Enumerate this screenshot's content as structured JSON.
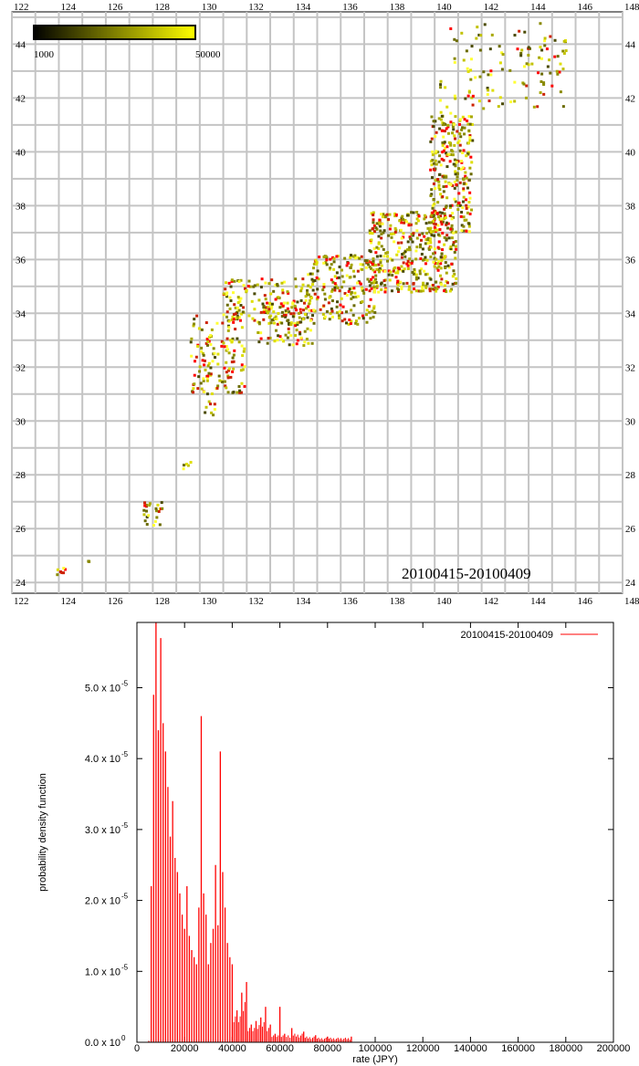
{
  "chart_data": [
    {
      "type": "scatter",
      "title": "",
      "annotation": "20100415-20100409",
      "xlabel": "",
      "ylabel": "",
      "xlim": [
        122,
        148
      ],
      "ylim": [
        23.6,
        45.2
      ],
      "x_ticks": [
        122,
        124,
        126,
        128,
        130,
        132,
        134,
        136,
        138,
        140,
        142,
        144,
        146,
        148
      ],
      "y_ticks": [
        24,
        26,
        28,
        30,
        32,
        34,
        36,
        38,
        40,
        42,
        44
      ],
      "grid": true,
      "colorbar": {
        "min": 1000,
        "max": 50000,
        "min_label": "1000",
        "max_label": "50000",
        "low_color": "#000000",
        "high_color": "#ffff00",
        "placement": "top-left"
      },
      "clusters": [
        {
          "x": [
            140.2,
            145.6
          ],
          "y": [
            41.6,
            44.8
          ],
          "n": 120
        },
        {
          "x": [
            139.8,
            141.6
          ],
          "y": [
            37.0,
            41.5
          ],
          "n": 260
        },
        {
          "x": [
            137.2,
            140.9
          ],
          "y": [
            34.8,
            37.8
          ],
          "n": 420
        },
        {
          "x": [
            134.5,
            137.5
          ],
          "y": [
            33.6,
            36.2
          ],
          "n": 200
        },
        {
          "x": [
            131.0,
            134.8
          ],
          "y": [
            33.6,
            35.3
          ],
          "n": 160
        },
        {
          "x": [
            132.4,
            134.9
          ],
          "y": [
            32.8,
            34.4
          ],
          "n": 80
        },
        {
          "x": [
            129.6,
            131.9
          ],
          "y": [
            31.0,
            34.0
          ],
          "n": 140
        },
        {
          "x": [
            130.2,
            130.7
          ],
          "y": [
            30.2,
            30.8
          ],
          "n": 8
        },
        {
          "x": [
            129.2,
            129.6
          ],
          "y": [
            28.2,
            28.5
          ],
          "n": 5
        },
        {
          "x": [
            127.6,
            128.4
          ],
          "y": [
            26.1,
            27.0
          ],
          "n": 25
        },
        {
          "x": [
            123.9,
            124.3
          ],
          "y": [
            24.3,
            24.6
          ],
          "n": 8
        },
        {
          "x": [
            125.2,
            125.4
          ],
          "y": [
            24.7,
            24.9
          ],
          "n": 3
        }
      ],
      "colors": [
        "#ff0000",
        "#cc2200",
        "#4a4a00",
        "#6b6b00",
        "#8a8a00",
        "#a8a800",
        "#c2c200",
        "#dede00",
        "#ffff33"
      ]
    },
    {
      "type": "bar",
      "title": "",
      "xlabel": "rate (JPY)",
      "ylabel": "probability density function",
      "xlim": [
        0,
        200000
      ],
      "ylim": [
        0,
        5.92e-05
      ],
      "x_ticks": [
        {
          "v": 0,
          "label": "0"
        },
        {
          "v": 20000,
          "label": "20000"
        },
        {
          "v": 40000,
          "label": "40000"
        },
        {
          "v": 60000,
          "label": "60000"
        },
        {
          "v": 80000,
          "label": "80000"
        },
        {
          "v": 100000,
          "label": "100000"
        },
        {
          "v": 120000,
          "label": "120000"
        },
        {
          "v": 140000,
          "label": "140000"
        },
        {
          "v": 160000,
          "label": "160000"
        },
        {
          "v": 180000,
          "label": "180000"
        },
        {
          "v": 200000,
          "label": "200000"
        }
      ],
      "y_ticks": [
        {
          "v": 0,
          "label": "0.0 x 10",
          "exp": "0"
        },
        {
          "v": 1e-05,
          "label": "1.0 x 10",
          "exp": "-5"
        },
        {
          "v": 2e-05,
          "label": "2.0 x 10",
          "exp": "-5"
        },
        {
          "v": 3e-05,
          "label": "3.0 x 10",
          "exp": "-5"
        },
        {
          "v": 4e-05,
          "label": "4.0 x 10",
          "exp": "-5"
        },
        {
          "v": 5e-05,
          "label": "5.0 x 10",
          "exp": "-5"
        }
      ],
      "series": [
        {
          "name": "20100415-20100409",
          "color": "#ff0000",
          "x": [
            5000,
            6000,
            7000,
            8000,
            9000,
            10000,
            11000,
            12000,
            13000,
            14000,
            15000,
            16000,
            17000,
            18000,
            19000,
            20000,
            21000,
            22000,
            23000,
            24000,
            25000,
            26000,
            27000,
            28000,
            29000,
            30000,
            31000,
            32000,
            33000,
            34000,
            35000,
            36000,
            37000,
            38000,
            39000,
            40000,
            42000,
            44000,
            46000,
            48000,
            50000,
            52000,
            54000,
            56000,
            58000,
            60000,
            62000,
            65000,
            70000,
            75000,
            80000,
            90000
          ],
          "values": [
            2e-07,
            2.2e-05,
            4.9e-05,
            5.92e-05,
            4.4e-05,
            5.7e-05,
            4.5e-05,
            4.1e-05,
            3.6e-05,
            2.9e-05,
            3.4e-05,
            2.6e-05,
            2.4e-05,
            2.1e-05,
            1.8e-05,
            1.6e-05,
            2.2e-05,
            1.5e-05,
            1.3e-05,
            1.2e-05,
            1.1e-05,
            1.9e-05,
            4.6e-05,
            2.1e-05,
            1.8e-05,
            1.1e-05,
            1.4e-05,
            1.6e-05,
            2.5e-05,
            1.65e-05,
            4.1e-05,
            2.4e-05,
            1.9e-05,
            1.4e-05,
            1.2e-05,
            1.1e-05,
            4.5e-06,
            7e-06,
            8.5e-06,
            2.5e-06,
            3e-06,
            3.5e-06,
            5e-06,
            2.5e-06,
            1.2e-06,
            5e-06,
            1.2e-06,
            2e-06,
            1.5e-06,
            1e-06,
            8e-07,
            8e-07
          ]
        }
      ]
    }
  ]
}
